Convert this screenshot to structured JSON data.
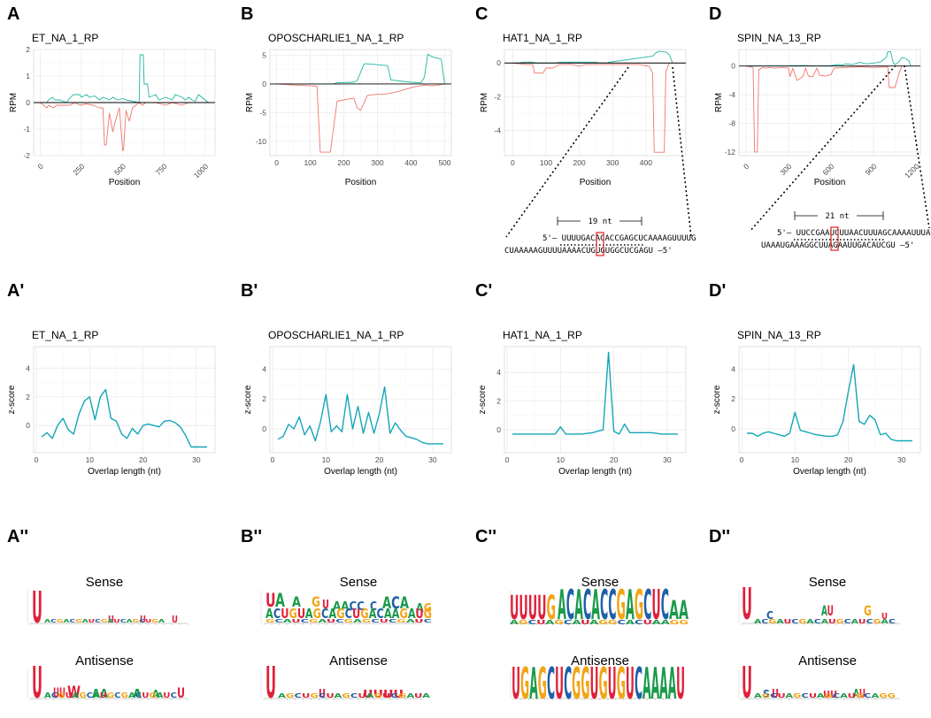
{
  "figure": {
    "colors": {
      "sense": "#1fb5a0",
      "antisense": "#f0766d",
      "zline": "#13a6b8",
      "grid": "#ebebeb",
      "highlight": "#e03030",
      "U": "#e0203a",
      "A": "#1a9a4a",
      "C": "#1f5fa8",
      "G": "#f2a516"
    },
    "panel_labels": [
      "A",
      "B",
      "C",
      "D",
      "A'",
      "B'",
      "C'",
      "D'",
      "A''",
      "B''",
      "C''",
      "D''"
    ]
  },
  "chart_data": [
    {
      "id": "A",
      "type": "line",
      "title": "ET_NA_1_RP",
      "xlabel": "Position",
      "ylabel": "RPM",
      "xlim": [
        -40,
        1060
      ],
      "ylim": [
        -2,
        2
      ],
      "xticks": [
        0,
        250,
        500,
        750,
        1000
      ],
      "yticks": [
        2,
        1,
        0,
        -1,
        -2
      ],
      "rotate_x": true,
      "series": [
        {
          "name": "sense",
          "x": [
            0,
            40,
            50,
            75,
            90,
            120,
            160,
            170,
            200,
            210,
            240,
            250,
            280,
            300,
            330,
            360,
            380,
            420,
            440,
            470,
            500,
            520,
            560,
            600,
            605,
            625,
            630,
            650,
            660,
            700,
            720,
            760,
            800,
            820,
            860,
            880,
            900,
            920,
            940,
            960,
            1000,
            1020
          ],
          "y": [
            0,
            0,
            0.1,
            0.2,
            0.1,
            0.1,
            0,
            0.1,
            0.3,
            0.3,
            0.3,
            0.2,
            0.3,
            0.2,
            0.25,
            0.1,
            0.2,
            0.1,
            0.2,
            0.1,
            0.15,
            0.1,
            0.05,
            0,
            1.8,
            1.8,
            0.7,
            0.7,
            0.2,
            0.3,
            0.1,
            0.2,
            0.1,
            0.3,
            0.2,
            0.1,
            0.2,
            0.1,
            0.05,
            0.3,
            0.1,
            0
          ]
        },
        {
          "name": "antisense",
          "x": [
            0,
            40,
            50,
            80,
            100,
            140,
            180,
            210,
            240,
            280,
            320,
            360,
            380,
            390,
            400,
            420,
            440,
            460,
            480,
            500,
            505,
            520,
            540,
            560,
            580,
            600,
            620,
            640,
            700,
            760,
            800,
            860,
            900,
            1000
          ],
          "y": [
            0,
            -0.2,
            -0.1,
            -0.2,
            -0.1,
            -0.1,
            -0.1,
            0,
            -0.1,
            -0.05,
            -0.1,
            -0.2,
            -0.2,
            -1.6,
            -1.6,
            -0.4,
            -1.1,
            -0.6,
            -0.2,
            -1.8,
            -1.8,
            -0.3,
            -0.7,
            -0.2,
            -0.1,
            0,
            -0.1,
            0,
            0,
            -0.1,
            0,
            -0.1,
            0,
            0
          ]
        }
      ]
    },
    {
      "id": "B",
      "type": "line",
      "title": "OPOSCHARLIE1_NA_1_RP",
      "xlabel": "Position",
      "ylabel": "RPM",
      "xlim": [
        -20,
        520
      ],
      "ylim": [
        -12.5,
        6
      ],
      "xticks": [
        0,
        100,
        200,
        300,
        400,
        500
      ],
      "yticks": [
        5,
        0,
        -5,
        -10
      ],
      "rotate_x": false,
      "series": [
        {
          "name": "sense",
          "x": [
            0,
            170,
            180,
            230,
            240,
            260,
            270,
            330,
            340,
            400,
            430,
            440,
            450,
            460,
            470,
            480,
            490,
            500
          ],
          "y": [
            0,
            0,
            0.2,
            0.3,
            0.6,
            3.5,
            3.5,
            3.2,
            0.7,
            0.3,
            0.2,
            1.2,
            5.2,
            4.8,
            4.6,
            4.5,
            4.3,
            0
          ]
        },
        {
          "name": "antisense",
          "x": [
            0,
            50,
            100,
            120,
            130,
            140,
            150,
            160,
            180,
            200,
            230,
            240,
            250,
            270,
            300,
            320,
            350,
            380,
            410,
            430,
            440,
            460,
            480,
            500
          ],
          "y": [
            0,
            -0.2,
            -0.3,
            -0.4,
            -11.9,
            -11.9,
            -11.9,
            -11.9,
            -3.0,
            -2.8,
            -2.5,
            -4.2,
            -4.6,
            -2.0,
            -1.8,
            -1.8,
            -1.5,
            -1.0,
            -0.5,
            -0.3,
            -0.2,
            -0.3,
            -0.2,
            0
          ]
        }
      ]
    },
    {
      "id": "C",
      "type": "line",
      "title": "HAT1_NA_1_RP",
      "xlabel": "Position",
      "ylabel": "RPM",
      "xlim": [
        -25,
        520
      ],
      "ylim": [
        -5.5,
        0.8
      ],
      "xticks": [
        0,
        100,
        200,
        300,
        400
      ],
      "yticks": [
        0,
        -2,
        -4
      ],
      "rotate_x": false,
      "series": [
        {
          "name": "sense",
          "x": [
            0,
            20,
            30,
            60,
            70,
            130,
            140,
            250,
            260,
            280,
            290,
            420,
            430,
            440,
            460,
            470,
            480
          ],
          "y": [
            0,
            0,
            0.05,
            0.05,
            0,
            0,
            0.05,
            0.05,
            0,
            0,
            0.05,
            0.4,
            0.6,
            0.7,
            0.65,
            0.5,
            0
          ]
        },
        {
          "name": "antisense",
          "x": [
            0,
            40,
            60,
            65,
            90,
            100,
            120,
            140,
            180,
            200,
            220,
            260,
            300,
            340,
            380,
            410,
            420,
            425,
            440,
            455,
            460,
            470
          ],
          "y": [
            0,
            -0.1,
            -0.1,
            -0.6,
            -0.6,
            -0.3,
            -0.3,
            -0.1,
            -0.1,
            -0.2,
            -0.1,
            -0.1,
            -0.1,
            -0.1,
            -0.1,
            -0.2,
            -0.6,
            -5.3,
            -5.3,
            -5.3,
            -0.5,
            0
          ]
        }
      ]
    },
    {
      "id": "D",
      "type": "line",
      "title": "SPIN_NA_13_RP",
      "xlabel": "Position",
      "ylabel": "RPM",
      "xlim": [
        -50,
        1230
      ],
      "ylim": [
        -12.5,
        2.3
      ],
      "xticks": [
        0,
        300,
        600,
        900,
        1200
      ],
      "yticks": [
        0,
        -4,
        -8,
        -12
      ],
      "rotate_x": true,
      "series": [
        {
          "name": "sense",
          "x": [
            0,
            250,
            400,
            500,
            600,
            650,
            680,
            700,
            750,
            800,
            850,
            900,
            950,
            990,
            1000,
            1020,
            1040,
            1060,
            1080,
            1100,
            1130,
            1150,
            1160
          ],
          "y": [
            0,
            0,
            0.05,
            0,
            0.05,
            0.2,
            0.1,
            0.3,
            0.2,
            0.5,
            0.3,
            0.4,
            0.6,
            1.2,
            2.0,
            2.0,
            0.3,
            0.3,
            0.6,
            1.2,
            1.0,
            0.7,
            0
          ]
        },
        {
          "name": "antisense",
          "x": [
            0,
            50,
            60,
            80,
            90,
            120,
            140,
            170,
            200,
            260,
            300,
            310,
            330,
            360,
            400,
            420,
            440,
            470,
            500,
            520,
            560,
            600,
            620,
            700,
            800,
            900,
            1000,
            1010,
            1050,
            1080,
            1100
          ],
          "y": [
            0,
            -0.2,
            -12,
            -12,
            -0.5,
            -0.2,
            -0.3,
            -0.2,
            -0.3,
            -0.2,
            -0.3,
            -1.5,
            -0.3,
            -2.0,
            -1.5,
            -0.3,
            -1.4,
            -1.5,
            -0.3,
            -1.3,
            -1.4,
            -1.2,
            -0.3,
            -0.2,
            -0.1,
            -0.2,
            -0.1,
            -3.0,
            -3.0,
            -1.0,
            0
          ]
        }
      ]
    },
    {
      "id": "A'",
      "type": "line",
      "title": "ET_NA_1_RP",
      "xlabel": "Overlap length (nt)",
      "ylabel": "z-score",
      "xlim": [
        -0.5,
        33.5
      ],
      "ylim": [
        -1.9,
        5.5
      ],
      "xticks": [
        0,
        10,
        20,
        30
      ],
      "yticks": [
        4,
        2,
        0
      ],
      "series": [
        {
          "name": "z",
          "x": [
            1,
            2,
            3,
            4,
            5,
            6,
            7,
            8,
            9,
            10,
            11,
            12,
            13,
            14,
            15,
            16,
            17,
            18,
            19,
            20,
            21,
            22,
            23,
            24,
            25,
            26,
            27,
            28,
            29,
            30,
            31,
            32
          ],
          "y": [
            -0.8,
            -0.5,
            -0.9,
            0,
            0.5,
            -0.3,
            -0.6,
            0.8,
            1.7,
            2.0,
            0.4,
            2.0,
            2.5,
            0.5,
            0.3,
            -0.6,
            -0.9,
            -0.2,
            -0.6,
            0,
            0.1,
            0,
            -0.1,
            0.3,
            0.35,
            0.2,
            -0.1,
            -0.7,
            -1.5,
            -1.5,
            -1.5,
            -1.5
          ]
        }
      ]
    },
    {
      "id": "B'",
      "type": "line",
      "title": "OPOSCHARLIE1_NA_1_RP",
      "xlabel": "Overlap length (nt)",
      "ylabel": "z-score",
      "xlim": [
        -0.5,
        33.5
      ],
      "ylim": [
        -1.6,
        5.5
      ],
      "xticks": [
        0,
        10,
        20,
        30
      ],
      "yticks": [
        4,
        2,
        0
      ],
      "series": [
        {
          "name": "z",
          "x": [
            1,
            2,
            3,
            4,
            5,
            6,
            7,
            8,
            9,
            10,
            11,
            12,
            13,
            14,
            15,
            16,
            17,
            18,
            19,
            20,
            21,
            22,
            23,
            24,
            25,
            26,
            27,
            28,
            29,
            30,
            31,
            32
          ],
          "y": [
            -0.7,
            -0.5,
            0.3,
            0,
            0.8,
            -0.4,
            0.2,
            -0.8,
            0.5,
            2.3,
            -0.2,
            0.2,
            -0.2,
            2.3,
            0,
            1.5,
            -0.3,
            1.1,
            -0.3,
            1.0,
            2.8,
            -0.3,
            0.4,
            -0.1,
            -0.5,
            -0.6,
            -0.7,
            -0.9,
            -1.0,
            -1.0,
            -1.0,
            -1.0
          ]
        }
      ]
    },
    {
      "id": "C'",
      "type": "line",
      "title": "HAT1_NA_1_RP",
      "xlabel": "Overlap length (nt)",
      "ylabel": "z-score",
      "xlim": [
        -0.5,
        33.5
      ],
      "ylim": [
        -1.6,
        5.8
      ],
      "xticks": [
        0,
        10,
        20,
        30
      ],
      "yticks": [
        4,
        2,
        0
      ],
      "series": [
        {
          "name": "z",
          "x": [
            1,
            2,
            3,
            4,
            5,
            6,
            7,
            8,
            9,
            10,
            11,
            12,
            13,
            14,
            15,
            16,
            17,
            18,
            19,
            20,
            21,
            22,
            23,
            24,
            25,
            26,
            27,
            28,
            29,
            30,
            31,
            32
          ],
          "y": [
            -0.3,
            -0.3,
            -0.3,
            -0.3,
            -0.3,
            -0.3,
            -0.3,
            -0.3,
            -0.3,
            0.2,
            -0.3,
            -0.3,
            -0.3,
            -0.3,
            -0.25,
            -0.2,
            -0.1,
            0,
            5.4,
            -0.1,
            -0.3,
            0.4,
            -0.2,
            -0.2,
            -0.2,
            -0.2,
            -0.2,
            -0.25,
            -0.3,
            -0.3,
            -0.3,
            -0.3
          ]
        }
      ]
    },
    {
      "id": "D'",
      "type": "line",
      "title": "SPIN_NA_13_RP",
      "xlabel": "Overlap length (nt)",
      "ylabel": "z-score",
      "xlim": [
        -0.5,
        33.5
      ],
      "ylim": [
        -1.6,
        5.5
      ],
      "xticks": [
        0,
        10,
        20,
        30
      ],
      "yticks": [
        4,
        2,
        0
      ],
      "series": [
        {
          "name": "z",
          "x": [
            1,
            2,
            3,
            4,
            5,
            6,
            7,
            8,
            9,
            10,
            11,
            12,
            13,
            14,
            15,
            16,
            17,
            18,
            19,
            20,
            21,
            22,
            23,
            24,
            25,
            26,
            27,
            28,
            29,
            30,
            31,
            32
          ],
          "y": [
            -0.3,
            -0.3,
            -0.5,
            -0.3,
            -0.2,
            -0.3,
            -0.4,
            -0.5,
            -0.3,
            1.1,
            -0.1,
            -0.2,
            -0.3,
            -0.4,
            -0.45,
            -0.5,
            -0.5,
            -0.4,
            0.5,
            2.5,
            4.3,
            0.5,
            0.3,
            0.9,
            0.6,
            -0.4,
            -0.3,
            -0.7,
            -0.8,
            -0.8,
            -0.8,
            -0.8
          ]
        }
      ]
    }
  ],
  "zoom_boxes": [
    {
      "id": "C",
      "length_label": "19 nt",
      "top_seq": "5'– UUUUGACACACCGAGCUCAAAAGUUUUG",
      "bottom_seq": "CUAAAAAGUUUUAAAACUGUGUGGCUCGAGU –5'"
    },
    {
      "id": "D",
      "length_label": "21 nt",
      "top_seq": "5'– UUCCGAAUCUUAACUUUAGCAAAAUUUA",
      "bottom_seq": "UAAAUGAAAGGCUUAGAAUUGACAUCGU –5'"
    }
  ],
  "logos": [
    {
      "id": "A''",
      "sense_title": "Sense",
      "antisense_title": "Antisense",
      "sense_letters": [
        "U"
      ],
      "antisense_letters": [
        "U",
        "U",
        "W",
        "A",
        "A",
        "A",
        "U"
      ]
    },
    {
      "id": "B''",
      "sense_title": "Sense",
      "antisense_title": "Antisense",
      "sense_letters": [
        "U",
        "A",
        "A",
        "G",
        "U",
        "AACC",
        "C",
        "ACA",
        "AG"
      ],
      "antisense_letters": [
        "U",
        "U",
        "U",
        "U"
      ]
    },
    {
      "id": "C''",
      "sense_title": "Sense",
      "antisense_title": "Antisense",
      "sense_letters": [
        "UUUUG",
        "ACACACCGAGCUC",
        "AA"
      ],
      "antisense_letters": [
        "UGAGCUCGGUGUGUCAAAAU"
      ]
    },
    {
      "id": "D''",
      "sense_title": "Sense",
      "antisense_title": "Antisense",
      "sense_letters": [
        "U",
        "C",
        "AU",
        "G"
      ],
      "antisense_letters": [
        "U",
        "U",
        "S",
        "U",
        "U",
        "AU"
      ]
    }
  ]
}
